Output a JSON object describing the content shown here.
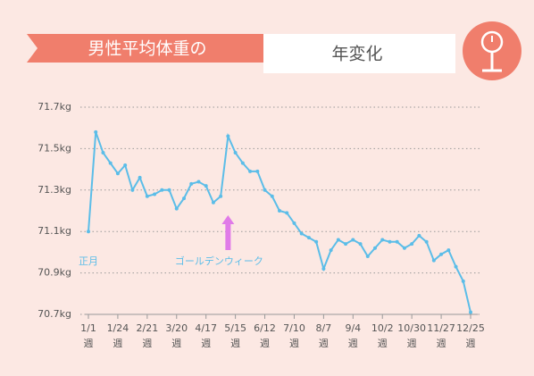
{
  "chart_data": {
    "type": "line",
    "title": "男性平均体重の",
    "subtitle": "年変化",
    "categories": [
      "1/1",
      null,
      null,
      null,
      "1/24",
      null,
      null,
      null,
      "2/21",
      null,
      null,
      null,
      "3/20",
      null,
      null,
      null,
      "4/17",
      null,
      null,
      null,
      "5/15",
      null,
      null,
      null,
      "6/12",
      null,
      null,
      null,
      "7/10",
      null,
      null,
      null,
      "8/7",
      null,
      null,
      null,
      "9/4",
      null,
      null,
      null,
      "10/2",
      null,
      null,
      null,
      "10/30",
      null,
      null,
      null,
      "11/27",
      null,
      null,
      null,
      "12/25"
    ],
    "xtick_unit": "週",
    "series": [
      {
        "color": "#5bbde8",
        "values": [
          71.1,
          71.58,
          71.48,
          71.43,
          71.38,
          71.42,
          71.3,
          71.36,
          71.27,
          71.28,
          71.3,
          71.3,
          71.21,
          71.26,
          71.33,
          71.34,
          71.32,
          71.24,
          71.27,
          71.56,
          71.48,
          71.43,
          71.39,
          71.39,
          71.3,
          71.27,
          71.2,
          71.19,
          71.14,
          71.09,
          71.07,
          71.05,
          70.92,
          71.01,
          71.06,
          71.04,
          71.06,
          71.04,
          70.98,
          71.02,
          71.06,
          71.05,
          71.05,
          71.02,
          71.04,
          71.08,
          71.05,
          70.96,
          70.99,
          71.01,
          70.93,
          70.86,
          70.71
        ]
      }
    ],
    "ylim": [
      70.7,
      71.7
    ],
    "yticks": [
      {
        "value": 70.7,
        "label": "70.7kg"
      },
      {
        "value": 70.9,
        "label": "70.9kg"
      },
      {
        "value": 71.1,
        "label": "71.1kg"
      },
      {
        "value": 71.3,
        "label": "71.3kg"
      },
      {
        "value": 71.5,
        "label": "71.5kg"
      },
      {
        "value": 71.7,
        "label": "71.7kg"
      }
    ],
    "grid": true,
    "annotations": [
      {
        "text": "正月",
        "index": 0
      },
      {
        "text": "ゴールデンウィーク",
        "index": 19,
        "arrow": true
      }
    ]
  }
}
